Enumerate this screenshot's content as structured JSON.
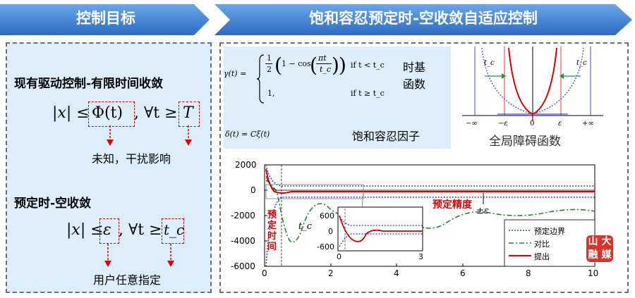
{
  "header": {
    "left_title": "控制目标",
    "right_title": "饱和容忍预定时-空收敛自适应控制",
    "left_color": "#2e74c9",
    "right_color": "#2e74c9"
  },
  "left_panel": {
    "section1_title": "现有驱动控制-有限时间收敛",
    "eq1": {
      "lhs": "|x| ≤",
      "bound": "Φ(t)",
      "mid": ", ∀t ≥",
      "time": "T"
    },
    "note1": "未知，干扰影响",
    "section2_title": "预定时-空收敛",
    "eq2": {
      "lhs": "|x| ≤",
      "bound": "ε",
      "mid": ", ∀t ≥",
      "time": "t_c"
    },
    "note2": "用户任意指定"
  },
  "right_panel": {
    "timebase": {
      "lhs": "γ(t) =",
      "case1_a": "1",
      "case1_b": "2",
      "case1_expr": "1 − cos",
      "case1_frac_top": "πt",
      "case1_frac_bot": "t_c",
      "case1_cond": "if t < t_c",
      "case2_val": "1,",
      "case2_cond": "if t ≥ t_c",
      "label": "时基函数",
      "label_line1": "时基",
      "label_line2": "函数"
    },
    "saturation": {
      "expr": "δ(t) = Cξ(t)",
      "label": "饱和容忍因子"
    },
    "barrier": {
      "label": "全局障碍函数",
      "ticks": [
        "−∞",
        "−ε",
        "0",
        "ε",
        "+∞"
      ],
      "tc_label": "t_c"
    },
    "main_plot": {
      "y_ticks": [
        "2000",
        "0",
        "-2000",
        "-4000",
        "-6000"
      ],
      "x_ticks": [
        "0",
        "2",
        "4",
        "6",
        "8",
        "10"
      ],
      "precision_label": "预定精度",
      "pm_eps": "±ε",
      "time_label_chars": [
        "预",
        "定",
        "时",
        "间"
      ],
      "tc_label": "t_c",
      "inset": {
        "y_ticks": [
          "600",
          "0",
          "-600"
        ],
        "x_ticks": [
          "0",
          "3"
        ]
      },
      "legend": [
        "预定边界",
        "对比",
        "提出"
      ],
      "watermark": [
        "山",
        "大",
        "融",
        "媒"
      ]
    }
  }
}
